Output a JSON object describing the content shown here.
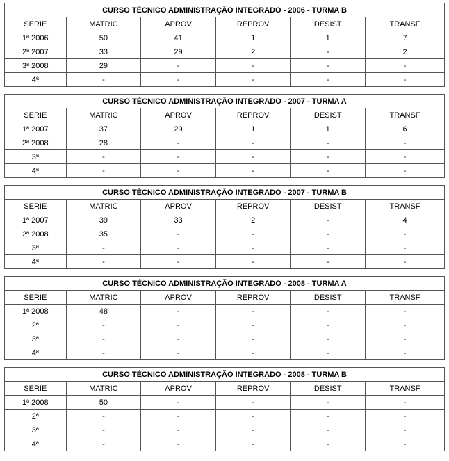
{
  "columns": [
    "SERIE",
    "MATRIC",
    "APROV",
    "REPROV",
    "DESIST",
    "TRANSF"
  ],
  "tables": [
    {
      "title": "CURSO TÉCNICO ADMINISTRAÇÃO INTEGRADO - 2006 - TURMA B",
      "rows": [
        {
          "serie": "1ª 2006",
          "matric": "50",
          "aprov": "41",
          "reprov": "1",
          "desist": "1",
          "transf": "7"
        },
        {
          "serie": "2ª 2007",
          "matric": "33",
          "aprov": "29",
          "reprov": "2",
          "desist": "-",
          "transf": "2"
        },
        {
          "serie": "3ª 2008",
          "matric": "29",
          "aprov": "-",
          "reprov": "-",
          "desist": "-",
          "transf": "-"
        },
        {
          "serie": "4ª",
          "matric": "-",
          "aprov": "-",
          "reprov": "-",
          "desist": "-",
          "transf": "-"
        }
      ]
    },
    {
      "title": "CURSO TÉCNICO ADMINISTRAÇÃO INTEGRADO - 2007 - TURMA A",
      "rows": [
        {
          "serie": "1ª 2007",
          "matric": "37",
          "aprov": "29",
          "reprov": "1",
          "desist": "1",
          "transf": "6"
        },
        {
          "serie": "2ª 2008",
          "matric": "28",
          "aprov": "-",
          "reprov": "-",
          "desist": "-",
          "transf": "-"
        },
        {
          "serie": "3ª",
          "matric": "-",
          "aprov": "-",
          "reprov": "-",
          "desist": "-",
          "transf": "-"
        },
        {
          "serie": "4ª",
          "matric": "-",
          "aprov": "-",
          "reprov": "-",
          "desist": "-",
          "transf": "-"
        }
      ]
    },
    {
      "title": "CURSO TÉCNICO ADMINISTRAÇÃO INTEGRADO - 2007 - TURMA B",
      "rows": [
        {
          "serie": "1ª 2007",
          "matric": "39",
          "aprov": "33",
          "reprov": "2",
          "desist": "-",
          "transf": "4"
        },
        {
          "serie": "2ª 2008",
          "matric": "35",
          "aprov": "-",
          "reprov": "-",
          "desist": "-",
          "transf": "-"
        },
        {
          "serie": "3ª",
          "matric": "-",
          "aprov": "-",
          "reprov": "-",
          "desist": "-",
          "transf": "-"
        },
        {
          "serie": "4ª",
          "matric": "-",
          "aprov": "-",
          "reprov": "-",
          "desist": "-",
          "transf": "-"
        }
      ]
    },
    {
      "title": "CURSO TÉCNICO ADMINISTRAÇÃO INTEGRADO - 2008 - TURMA A",
      "rows": [
        {
          "serie": "1ª 2008",
          "matric": "48",
          "aprov": "-",
          "reprov": "-",
          "desist": "-",
          "transf": "-"
        },
        {
          "serie": "2ª",
          "matric": "-",
          "aprov": "-",
          "reprov": "-",
          "desist": "-",
          "transf": "-"
        },
        {
          "serie": "3ª",
          "matric": "-",
          "aprov": "-",
          "reprov": "-",
          "desist": "-",
          "transf": "-"
        },
        {
          "serie": "4ª",
          "matric": "-",
          "aprov": "-",
          "reprov": "-",
          "desist": "-",
          "transf": "-"
        }
      ]
    },
    {
      "title": "CURSO TÉCNICO ADMINISTRAÇÃO INTEGRADO - 2008 - TURMA B",
      "rows": [
        {
          "serie": "1ª 2008",
          "matric": "50",
          "aprov": "-",
          "reprov": "-",
          "desist": "-",
          "transf": "-"
        },
        {
          "serie": "2ª",
          "matric": "-",
          "aprov": "-",
          "reprov": "-",
          "desist": "-",
          "transf": "-"
        },
        {
          "serie": "3ª",
          "matric": "-",
          "aprov": "-",
          "reprov": "-",
          "desist": "-",
          "transf": "-"
        },
        {
          "serie": "4ª",
          "matric": "-",
          "aprov": "-",
          "reprov": "-",
          "desist": "-",
          "transf": "-"
        }
      ]
    }
  ]
}
